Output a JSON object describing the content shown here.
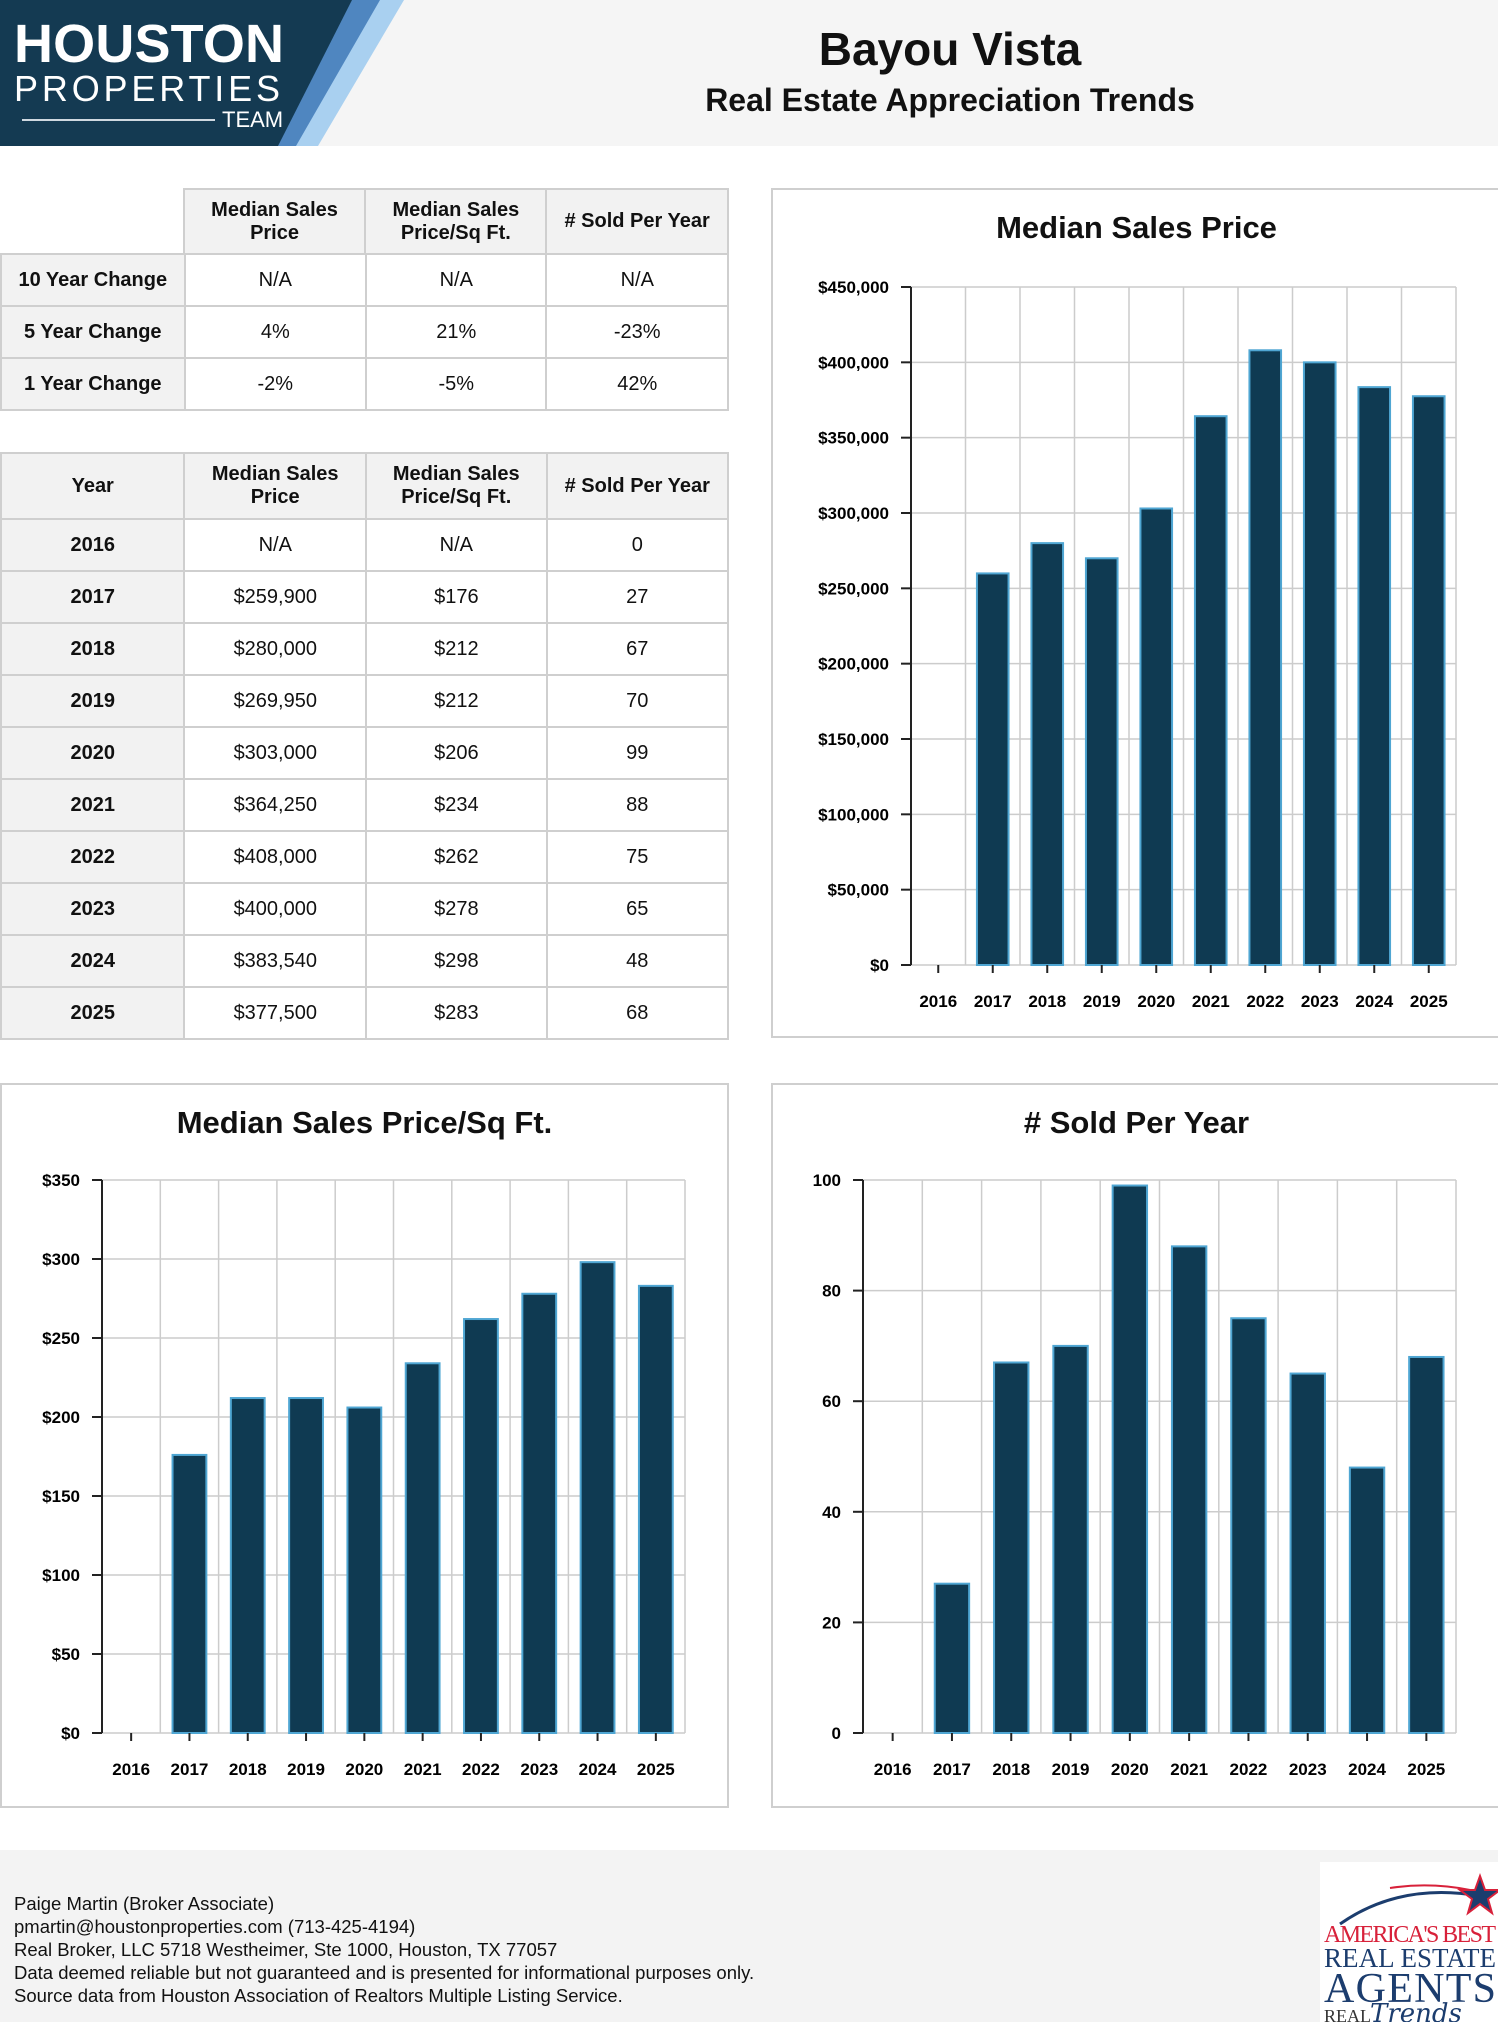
{
  "header": {
    "logo_text": "HOUSTON PROPERTIES TEAM",
    "title": "Bayou Vista",
    "subtitle": "Real Estate Appreciation Trends"
  },
  "change_table": {
    "headers": [
      "",
      "Median Sales Price",
      "Median Sales Price/Sq Ft.",
      "# Sold Per Year"
    ],
    "rows": [
      [
        "10 Year Change",
        "N/A",
        "N/A",
        "N/A"
      ],
      [
        "5 Year Change",
        "4%",
        "21%",
        "-23%"
      ],
      [
        "1 Year Change",
        "-2%",
        "-5%",
        "42%"
      ]
    ]
  },
  "year_table": {
    "headers": [
      "Year",
      "Median Sales Price",
      "Median Sales Price/Sq Ft.",
      "# Sold Per Year"
    ],
    "rows": [
      [
        "2016",
        "N/A",
        "N/A",
        "0"
      ],
      [
        "2017",
        "$259,900",
        "$176",
        "27"
      ],
      [
        "2018",
        "$280,000",
        "$212",
        "67"
      ],
      [
        "2019",
        "$269,950",
        "$212",
        "70"
      ],
      [
        "2020",
        "$303,000",
        "$206",
        "99"
      ],
      [
        "2021",
        "$364,250",
        "$234",
        "88"
      ],
      [
        "2022",
        "$408,000",
        "$262",
        "75"
      ],
      [
        "2023",
        "$400,000",
        "$278",
        "65"
      ],
      [
        "2024",
        "$383,540",
        "$298",
        "48"
      ],
      [
        "2025",
        "$377,500",
        "$283",
        "68"
      ]
    ]
  },
  "chart_data": [
    {
      "type": "bar",
      "title": "Median Sales Price",
      "categories": [
        "2016",
        "2017",
        "2018",
        "2019",
        "2020",
        "2021",
        "2022",
        "2023",
        "2024",
        "2025"
      ],
      "values": [
        0,
        259900,
        280000,
        269950,
        303000,
        364250,
        408000,
        400000,
        383540,
        377500
      ],
      "ylim": [
        0,
        450000
      ],
      "yticks": [
        0,
        50000,
        100000,
        150000,
        200000,
        250000,
        300000,
        350000,
        400000,
        450000
      ],
      "ytick_labels": [
        "$0",
        "$50,000",
        "$100,000",
        "$150,000",
        "$200,000",
        "$250,000",
        "$300,000",
        "$350,000",
        "$400,000",
        "$450,000"
      ],
      "grid": true
    },
    {
      "type": "bar",
      "title": "Median Sales Price/Sq Ft.",
      "categories": [
        "2016",
        "2017",
        "2018",
        "2019",
        "2020",
        "2021",
        "2022",
        "2023",
        "2024",
        "2025"
      ],
      "values": [
        0,
        176,
        212,
        212,
        206,
        234,
        262,
        278,
        298,
        283
      ],
      "ylim": [
        0,
        350
      ],
      "yticks": [
        0,
        50,
        100,
        150,
        200,
        250,
        300,
        350
      ],
      "ytick_labels": [
        "$0",
        "$50",
        "$100",
        "$150",
        "$200",
        "$250",
        "$300",
        "$350"
      ],
      "grid": true
    },
    {
      "type": "bar",
      "title": "# Sold Per Year",
      "categories": [
        "2016",
        "2017",
        "2018",
        "2019",
        "2020",
        "2021",
        "2022",
        "2023",
        "2024",
        "2025"
      ],
      "values": [
        0,
        27,
        67,
        70,
        99,
        88,
        75,
        65,
        48,
        68
      ],
      "ylim": [
        0,
        100
      ],
      "yticks": [
        0,
        20,
        40,
        60,
        80,
        100
      ],
      "ytick_labels": [
        "0",
        "20",
        "40",
        "60",
        "80",
        "100"
      ],
      "grid": true
    }
  ],
  "colors": {
    "bar": "#0f3a52",
    "bar_border": "#4fa6d3",
    "grid": "#cccccc"
  },
  "footer": {
    "lines": [
      "Paige Martin (Broker Associate)",
      "pmartin@houstonproperties.com (713-425-4194)",
      "Real Broker, LLC 5718 Westheimer, Ste 1000, Houston, TX 77057",
      "Data deemed reliable but not guaranteed and is presented for informational purposes only.",
      "Source data from Houston Association of Realtors Multiple Listing Service."
    ],
    "badge_text": "AMERICA'S BEST REAL ESTATE AGENTS REAL Trends"
  }
}
